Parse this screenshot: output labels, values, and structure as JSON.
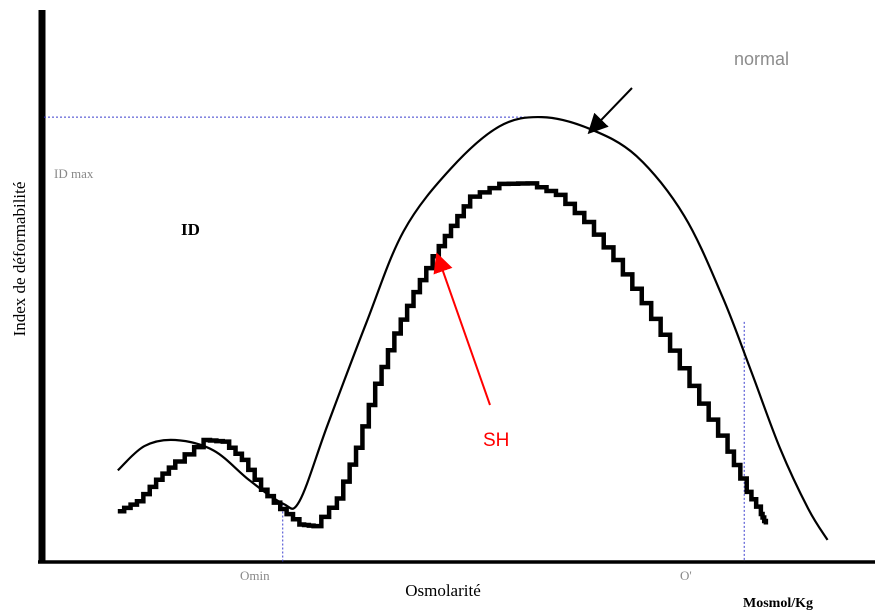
{
  "chart_data": {
    "type": "line",
    "title": "",
    "xlabel": "Osmolarité",
    "ylabel": "Index de déformabilité",
    "x_unit": "Mosmol/Kg",
    "y_tag": "ID",
    "grid": false,
    "xlim": [
      0,
      10
    ],
    "ylim": [
      0,
      10
    ],
    "reference_labels": {
      "id_max": "ID max",
      "omin": "Omin",
      "o_prime": "O'"
    },
    "reference_values": {
      "id_max": 8.06,
      "omin": 2.89,
      "o_prime": 8.43
    },
    "colors": {
      "normal": "#000000",
      "sh": "#000000",
      "sh_annotation": "#ff0000",
      "reference_lines": "#3b3fce",
      "axis": "#000000"
    },
    "series": [
      {
        "name": "normal",
        "x": [
          0.91,
          1.23,
          1.6,
          2.06,
          2.49,
          2.89,
          3.09,
          3.43,
          3.89,
          4.34,
          4.91,
          5.49,
          6.0,
          6.57,
          7.14,
          7.71,
          8.17,
          8.51,
          8.86,
          9.2,
          9.43
        ],
        "y": [
          1.66,
          2.1,
          2.21,
          2.02,
          1.48,
          1.06,
          1.1,
          2.49,
          4.32,
          5.99,
          7.13,
          7.89,
          8.06,
          7.85,
          7.35,
          6.27,
          4.8,
          3.47,
          2.06,
          0.96,
          0.4
        ]
      },
      {
        "name": "SH",
        "x": [
          0.91,
          1.14,
          1.37,
          1.6,
          1.94,
          2.17,
          2.4,
          2.63,
          2.86,
          3.09,
          3.26,
          3.54,
          3.77,
          4.0,
          4.23,
          4.46,
          4.69,
          4.91,
          5.14,
          5.49,
          5.83,
          6.17,
          6.51,
          6.86,
          7.2,
          7.54,
          7.89,
          8.23,
          8.46,
          8.63,
          8.69
        ],
        "y": [
          0.92,
          1.1,
          1.49,
          1.82,
          2.21,
          2.18,
          1.85,
          1.31,
          0.96,
          0.68,
          0.65,
          1.15,
          2.07,
          3.23,
          4.14,
          4.89,
          5.54,
          6.09,
          6.62,
          6.85,
          6.86,
          6.65,
          6.16,
          5.47,
          4.69,
          3.83,
          2.87,
          2.0,
          1.27,
          0.87,
          0.68
        ]
      }
    ],
    "annotations": [
      {
        "text": "normal",
        "color": "#8c8c8c",
        "target_series": "normal",
        "target_x": 6.6,
        "target_y": 7.83
      },
      {
        "text": "SH",
        "color": "#ff0000",
        "target_series": "SH",
        "target_x": 4.71,
        "target_y": 5.58
      }
    ]
  }
}
